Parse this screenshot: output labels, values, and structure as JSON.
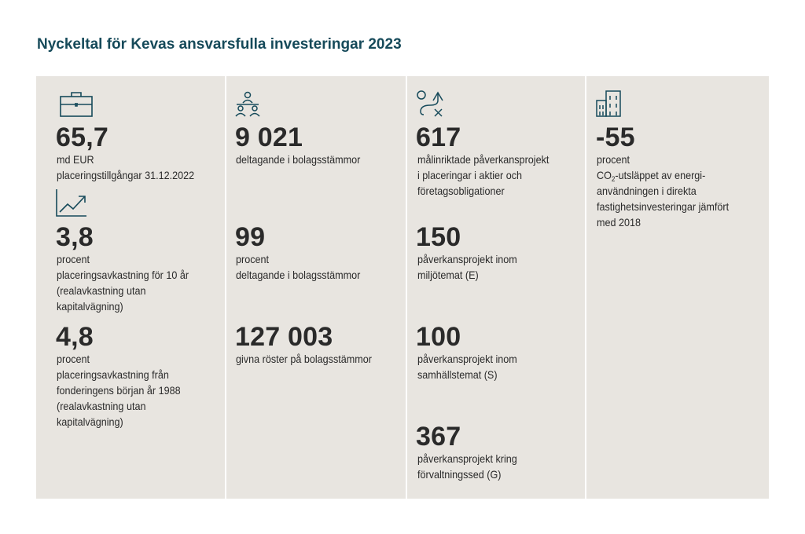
{
  "title": "Nyckeltal för Kevas ansvarsfulla investeringar 2023",
  "columns": [
    {
      "icon": "briefcase-icon",
      "stats": [
        {
          "value": "65,7",
          "lines": "md EUR\nplaceringstillgångar 31.12.2022"
        },
        {
          "icon": "trend-chart-icon",
          "value": "3,8",
          "lines": "procent\nplaceringsavkastning för 10 år\n(realavkastning utan\nkapitalvägning)"
        },
        {
          "value": "4,8",
          "lines": "procent\nplaceringsavkastning från\nfonderingens början år 1988\n(realavkastning utan\nkapitalvägning)"
        }
      ]
    },
    {
      "icon": "meeting-people-icon",
      "stats": [
        {
          "value": "9 021",
          "lines": "deltagande i bolagsstämmor"
        },
        {
          "value": "99",
          "lines": "procent\ndeltagande i bolagsstämmor"
        },
        {
          "value": "127 003",
          "lines": "givna röster på bolagsstämmor"
        }
      ]
    },
    {
      "icon": "strategy-arrow-icon",
      "stats": [
        {
          "value": "617",
          "lines": "målinriktade påverkansprojekt\ni placeringar i aktier och\nföretagsobligationer"
        },
        {
          "value": "150",
          "lines": "påverkansprojekt inom\nmiljötemat (E)"
        },
        {
          "value": "100",
          "lines": "påverkansprojekt inom\nsamhällstemat (S)"
        },
        {
          "value": "367",
          "lines": "påverkansprojekt kring\nförvaltningssed (G)"
        }
      ]
    },
    {
      "icon": "buildings-icon",
      "stats": [
        {
          "value": "-55",
          "line1": "procent",
          "co2_prefix": "CO",
          "co2_sub": "2",
          "co2_rest": "-utsläppet av energi-",
          "lines_after": "användningen i direkta\nfastighetsinvesteringar jämfört\nmed 2018"
        }
      ]
    }
  ],
  "colors": {
    "title": "#164a5a",
    "panel": "#e8e5e0",
    "icon": "#164a5a",
    "text": "#2a2a2a"
  }
}
